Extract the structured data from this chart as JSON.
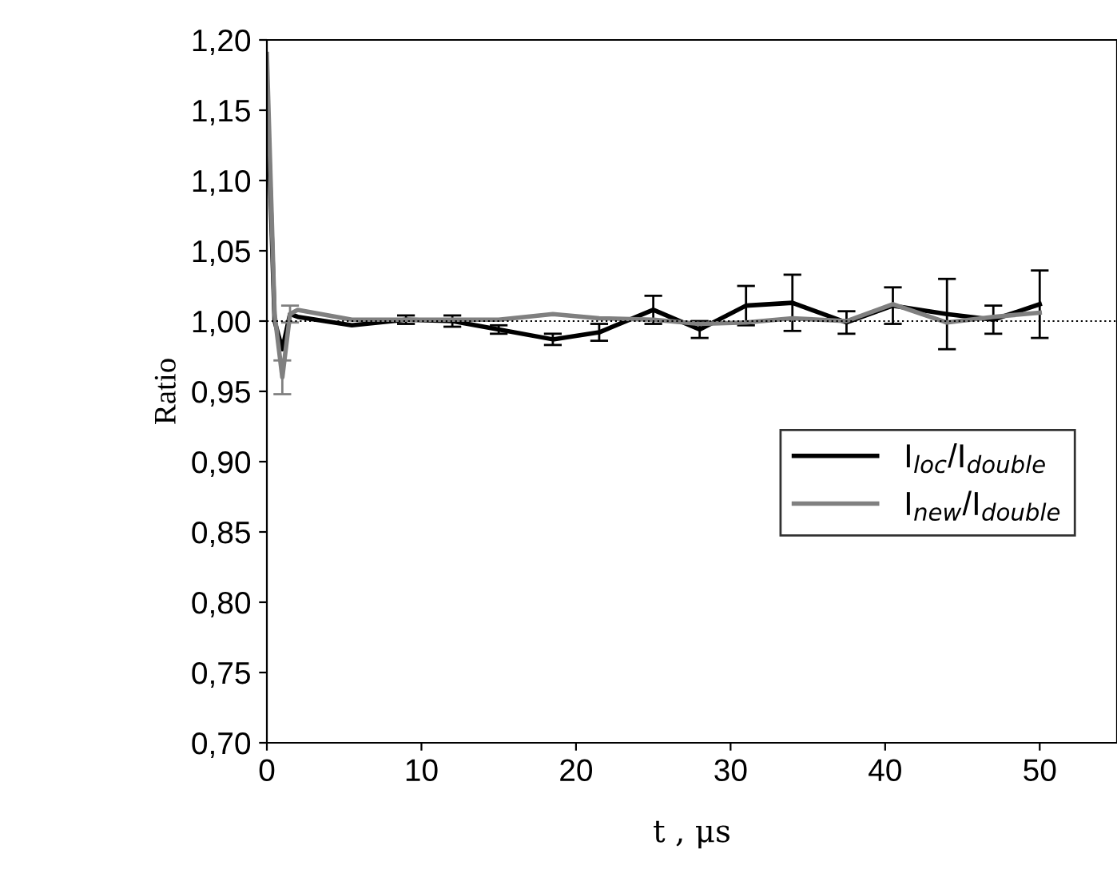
{
  "chart_data": {
    "type": "line",
    "xlabel": "t , μs",
    "ylabel": "Ratio",
    "xlim": [
      0,
      55
    ],
    "xticks": [
      0,
      10,
      20,
      30,
      40,
      50
    ],
    "ylim": [
      0.7,
      1.2
    ],
    "yticks": [
      {
        "value": 0.7,
        "label": "0,70"
      },
      {
        "value": 0.75,
        "label": "0,75"
      },
      {
        "value": 0.8,
        "label": "0,80"
      },
      {
        "value": 0.85,
        "label": "0,85"
      },
      {
        "value": 0.9,
        "label": "0,90"
      },
      {
        "value": 0.95,
        "label": "0,95"
      },
      {
        "value": 1.0,
        "label": "1,00"
      },
      {
        "value": 1.05,
        "label": "1,05"
      },
      {
        "value": 1.1,
        "label": "1,10"
      },
      {
        "value": 1.15,
        "label": "1,15"
      },
      {
        "value": 1.2,
        "label": "1,20"
      }
    ],
    "x": [
      0,
      0.5,
      1,
      1.5,
      2,
      5.5,
      9,
      12,
      15,
      18.5,
      21.5,
      25,
      28,
      31,
      34,
      37.5,
      40.5,
      44,
      47,
      50
    ],
    "series": [
      {
        "name": "I$_{loc}$/I$_{double}$",
        "color": "#000000",
        "values": [
          1.17,
          1.0,
          0.98,
          1.005,
          1.003,
          0.997,
          1.001,
          1.0,
          0.994,
          0.987,
          0.992,
          1.008,
          0.994,
          1.011,
          1.013,
          0.999,
          1.011,
          1.005,
          1.001,
          1.012
        ],
        "errors": [
          null,
          null,
          null,
          null,
          null,
          null,
          0.003,
          0.004,
          0.003,
          0.004,
          0.006,
          0.01,
          0.006,
          0.014,
          0.02,
          0.008,
          0.013,
          0.025,
          0.01,
          0.024
        ]
      },
      {
        "name": "I$_{new}$/I$_{double}$",
        "color": "#808080",
        "values": [
          1.19,
          1.005,
          0.96,
          1.005,
          1.008,
          1.001,
          1.001,
          1.001,
          1.001,
          1.005,
          1.002,
          1.001,
          0.998,
          0.999,
          1.002,
          1.0,
          1.012,
          0.999,
          1.003,
          1.006
        ],
        "errors": [
          null,
          null,
          0.012,
          0.006,
          null,
          null,
          null,
          null,
          null,
          null,
          null,
          null,
          null,
          null,
          null,
          null,
          null,
          null,
          null,
          null
        ]
      }
    ],
    "ref_lines": [
      {
        "axis": "y",
        "value": 1.0,
        "line_style": "dotted",
        "color": "#000000"
      }
    ],
    "legend": "right",
    "grid": false,
    "marker": "none",
    "line_style": "solid"
  }
}
